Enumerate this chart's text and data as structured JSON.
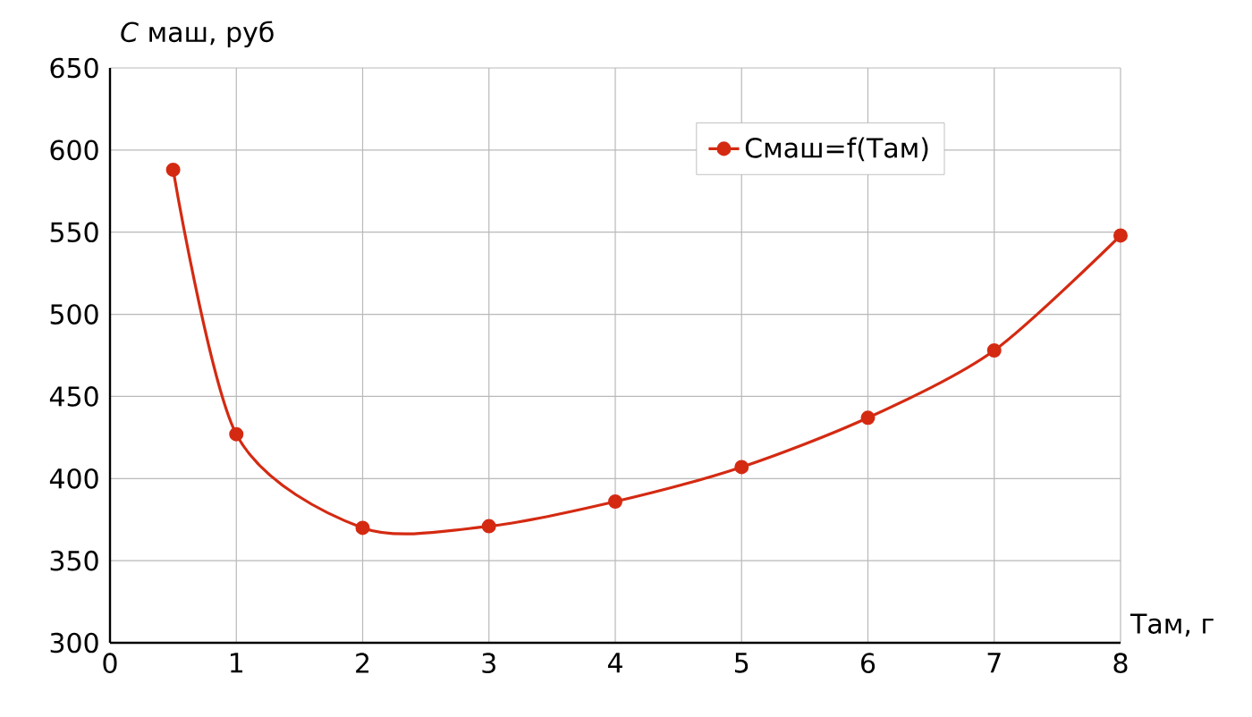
{
  "chart_data": {
    "type": "line",
    "xlabel": "Tам, г",
    "ylabel": "*C* маш, руб",
    "x": [
      0.5,
      1,
      2,
      3,
      4,
      5,
      6,
      7,
      8
    ],
    "series": [
      {
        "name": "Cмаш=f(Tам)",
        "color": "#d42a12",
        "values": [
          588,
          427,
          370,
          371,
          386,
          407,
          437,
          478,
          548
        ]
      }
    ],
    "xlim": [
      0,
      8
    ],
    "xticks": [
      0,
      1,
      2,
      3,
      4,
      5,
      6,
      7,
      8
    ],
    "ylim": [
      300,
      650
    ],
    "yticks": [
      300,
      350,
      400,
      450,
      500,
      550,
      600,
      650
    ],
    "grid": true,
    "legend": "top right",
    "marker": "circle",
    "line_style": "solid"
  }
}
